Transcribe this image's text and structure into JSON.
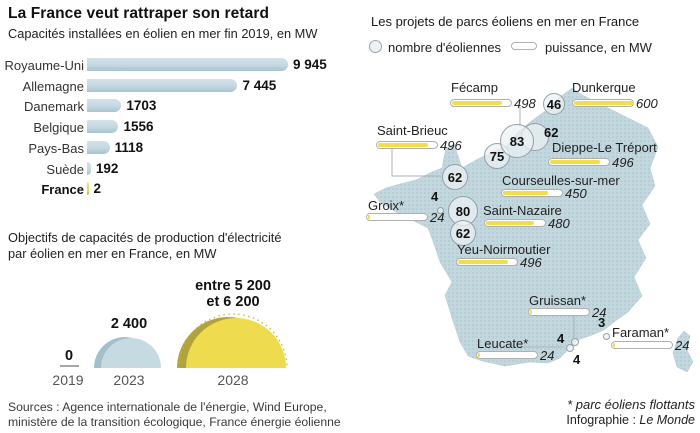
{
  "left": {
    "title": "La France veut rattraper son retard",
    "subtitle": "Capacités installées en éolien en mer fin 2019, en MW",
    "objectives_title_line1": "Objectifs de capacités de production d'électricité",
    "objectives_title_line2": "par éolien en mer en France, en MW",
    "sources_line1": "Sources : Agence internationale de l'énergie, Wind Europe,",
    "sources_line2": "ministère de la transition écologique, France énergie éolienne"
  },
  "right": {
    "title": "Les projets de parcs éoliens en mer en France",
    "legend": {
      "circle_label": "nombre d'éoliennes",
      "bar_label": "puissance, en MW"
    },
    "footnote": "* parc éoliens flottants",
    "credit_prefix": "Infographie : ",
    "credit_name": "Le Monde"
  },
  "colors": {
    "bar_blue": "#c4d8e1",
    "bar_blue_edge": "#a8c4d0",
    "accent_yellow": "#eedb4e",
    "olive_shadow": "#b1a33c",
    "blue_shadow": "#a3bfcc",
    "map_land": "#c3d7de",
    "map_dot": "#a9c3cc",
    "power_bar_yellow": "#f1de4a"
  },
  "chart_data": [
    {
      "type": "bar",
      "orientation": "horizontal",
      "title": "Capacités installées en éolien en mer fin 2019, en MW",
      "unit": "MW",
      "categories": [
        "Royaume-Uni",
        "Allemagne",
        "Danemark",
        "Belgique",
        "Pays-Bas",
        "Suède",
        "France"
      ],
      "values": [
        9945,
        7445,
        1703,
        1556,
        1118,
        192,
        2
      ],
      "value_labels": [
        "9 945",
        "7 445",
        "1703",
        "1556",
        "1118",
        "192",
        "2"
      ],
      "highlight_category": "France",
      "xlim": [
        0,
        10000
      ],
      "grid": false,
      "value_label_position": "end"
    },
    {
      "type": "area",
      "subtype": "proportional-semicircles",
      "title": "Objectifs de capacités de production d'électricité par éolien en mer en France, en MW",
      "unit": "MW",
      "categories": [
        "2019",
        "2023",
        "2028"
      ],
      "values": [
        0,
        2400,
        5700
      ],
      "value_ranges": [
        [
          0,
          0
        ],
        [
          2400,
          2400
        ],
        [
          5200,
          6200
        ]
      ],
      "value_labels": [
        [
          "0"
        ],
        [
          "2 400"
        ],
        [
          "entre 5 200",
          "et 6 200"
        ]
      ]
    },
    {
      "type": "scatter",
      "subtype": "proportional-symbol-map-of-france",
      "title": "Les projets de parcs éoliens en mer en France",
      "legend": [
        "nombre d'éoliennes",
        "puissance, en MW"
      ],
      "power_scale_max_mw": 600,
      "points": [
        {
          "id": "fecamp",
          "name": "Fécamp",
          "turbines": 83,
          "turbines_label": "83",
          "power_mw": 498,
          "power_label": "498",
          "floating": false
        },
        {
          "id": "dunkerque",
          "name": "Dunkerque",
          "turbines": 46,
          "turbines_label": "46",
          "power_mw": 600,
          "power_label": "600",
          "floating": false
        },
        {
          "id": "dieppe",
          "name": "Dieppe-Le Tréport",
          "turbines": 62,
          "turbines_label": "62",
          "power_mw": 496,
          "power_label": "496",
          "floating": false
        },
        {
          "id": "saint-brieuc",
          "name": "Saint-Brieuc",
          "turbines": 62,
          "turbines_label": "62",
          "power_mw": 496,
          "power_label": "496",
          "floating": false
        },
        {
          "id": "courseulles",
          "name": "Courseulles-sur-mer",
          "turbines": 75,
          "turbines_label": "75",
          "power_mw": 450,
          "power_label": "450",
          "floating": false
        },
        {
          "id": "saint-nazaire",
          "name": "Saint-Nazaire",
          "turbines": 80,
          "turbines_label": "80",
          "power_mw": 480,
          "power_label": "480",
          "floating": false
        },
        {
          "id": "yeu",
          "name": "Yeu-Noirmoutier",
          "turbines": 62,
          "turbines_label": "62",
          "power_mw": 496,
          "power_label": "496",
          "floating": false
        },
        {
          "id": "groix",
          "name": "Groix*",
          "turbines": 4,
          "turbines_label": "4",
          "power_mw": 24,
          "power_label": "24",
          "floating": true
        },
        {
          "id": "gruissan",
          "name": "Gruissan*",
          "turbines": 4,
          "turbines_label": "4",
          "power_mw": 24,
          "power_label": "24",
          "floating": true
        },
        {
          "id": "leucate",
          "name": "Leucate*",
          "turbines": 4,
          "turbines_label": "4",
          "power_mw": 24,
          "power_label": "24",
          "floating": true
        },
        {
          "id": "faraman",
          "name": "Faraman*",
          "turbines": 3,
          "turbines_label": "3",
          "power_mw": 24,
          "power_label": "24",
          "floating": true
        }
      ],
      "footnote": "* parc éoliens flottants"
    }
  ]
}
